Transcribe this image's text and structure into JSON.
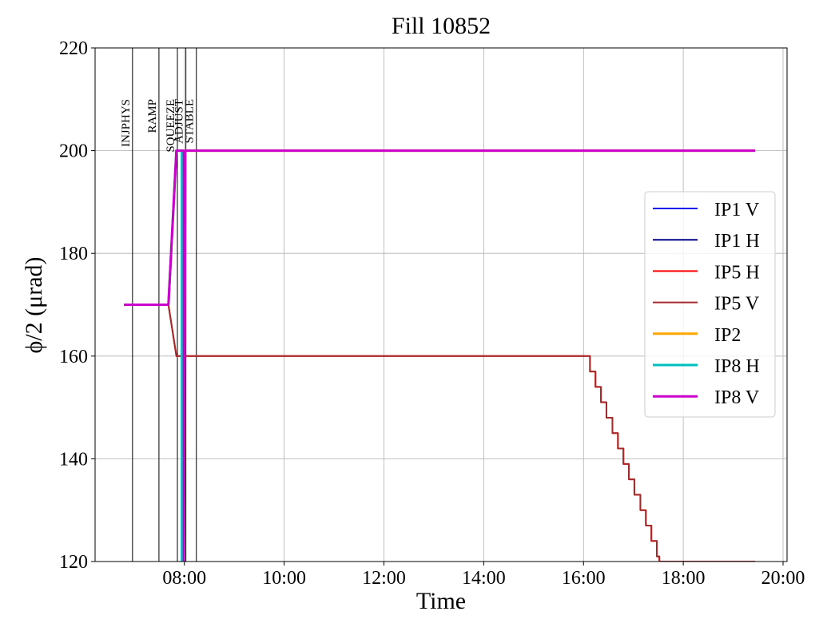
{
  "chart_data": {
    "type": "line",
    "title": "Fill 10852",
    "xlabel": "Time",
    "ylabel": "ϕ/2 (μrad)",
    "xlim": [
      6.21,
      20.08
    ],
    "ylim": [
      120,
      220
    ],
    "xticks": [
      {
        "value": 8,
        "label": "08:00"
      },
      {
        "value": 10,
        "label": "10:00"
      },
      {
        "value": 12,
        "label": "12:00"
      },
      {
        "value": 14,
        "label": "14:00"
      },
      {
        "value": 16,
        "label": "16:00"
      },
      {
        "value": 18,
        "label": "18:00"
      },
      {
        "value": 20,
        "label": "20:00"
      }
    ],
    "yticks": [
      120,
      140,
      160,
      180,
      200,
      220
    ],
    "grid": true,
    "legend": "right",
    "mode_lines": {
      "names": [
        "INJPHYS",
        "RAMP",
        "SQUEEZE",
        "ADJUST",
        "STABLE"
      ],
      "x": [
        6.96,
        7.49,
        7.86,
        8.03,
        8.24
      ]
    },
    "series": [
      {
        "name": "IP1 V",
        "color": "#0000ee",
        "x": [
          6.79,
          7.68,
          7.84,
          7.99,
          7.99,
          8.02,
          19.44
        ],
        "values": [
          170,
          170,
          200,
          200,
          120,
          200,
          200
        ]
      },
      {
        "name": "IP1 H",
        "color": "#00008b",
        "x": [
          6.79,
          7.68,
          7.84,
          7.99,
          7.99,
          8.02,
          19.44
        ],
        "values": [
          170,
          170,
          200,
          200,
          120,
          200,
          200
        ]
      },
      {
        "name": "IP5 H",
        "color": "#ff0000",
        "x": [
          6.79,
          7.68,
          7.84,
          16.13,
          16.13,
          16.24,
          16.24,
          16.35,
          16.35,
          16.46,
          16.46,
          16.58,
          16.58,
          16.69,
          16.69,
          16.8,
          16.8,
          16.91,
          16.91,
          17.02,
          17.02,
          17.14,
          17.14,
          17.25,
          17.25,
          17.36,
          17.36,
          17.47,
          17.47,
          17.52,
          17.52,
          19.44
        ],
        "values": [
          170,
          170,
          160,
          160,
          157,
          157,
          154,
          154,
          151,
          151,
          148,
          148,
          145,
          145,
          142,
          142,
          139,
          139,
          136,
          136,
          133,
          133,
          130,
          130,
          127,
          127,
          124,
          124,
          121,
          121,
          120,
          120
        ]
      },
      {
        "name": "IP5 V",
        "color": "#a52a2a",
        "x": [
          6.79,
          7.68,
          7.84,
          16.13,
          16.13,
          16.24,
          16.24,
          16.35,
          16.35,
          16.46,
          16.46,
          16.58,
          16.58,
          16.69,
          16.69,
          16.8,
          16.8,
          16.91,
          16.91,
          17.02,
          17.02,
          17.14,
          17.14,
          17.25,
          17.25,
          17.36,
          17.36,
          17.47,
          17.47,
          17.52,
          17.52,
          19.44
        ],
        "values": [
          170,
          170,
          160,
          160,
          157,
          157,
          154,
          154,
          151,
          151,
          148,
          148,
          145,
          145,
          142,
          142,
          139,
          139,
          136,
          136,
          133,
          133,
          130,
          130,
          127,
          127,
          124,
          124,
          121,
          121,
          120,
          120
        ]
      },
      {
        "name": "IP2",
        "color": "#ffa500",
        "x": [
          6.79,
          7.68,
          7.84,
          7.99,
          7.99,
          8.02,
          19.44
        ],
        "values": [
          170,
          170,
          200,
          200,
          120,
          200,
          200
        ]
      },
      {
        "name": "IP8 H",
        "color": "#00bfbf",
        "x": [
          6.79,
          7.68,
          7.84,
          7.95,
          7.95
        ],
        "values": [
          170,
          170,
          200,
          200,
          120
        ]
      },
      {
        "name": "IP8 V",
        "color": "#cc00cc",
        "x": [
          6.79,
          7.68,
          7.84,
          7.99,
          7.99,
          8.02,
          19.44
        ],
        "values": [
          170,
          170,
          200,
          200,
          120,
          200,
          200
        ]
      }
    ]
  }
}
